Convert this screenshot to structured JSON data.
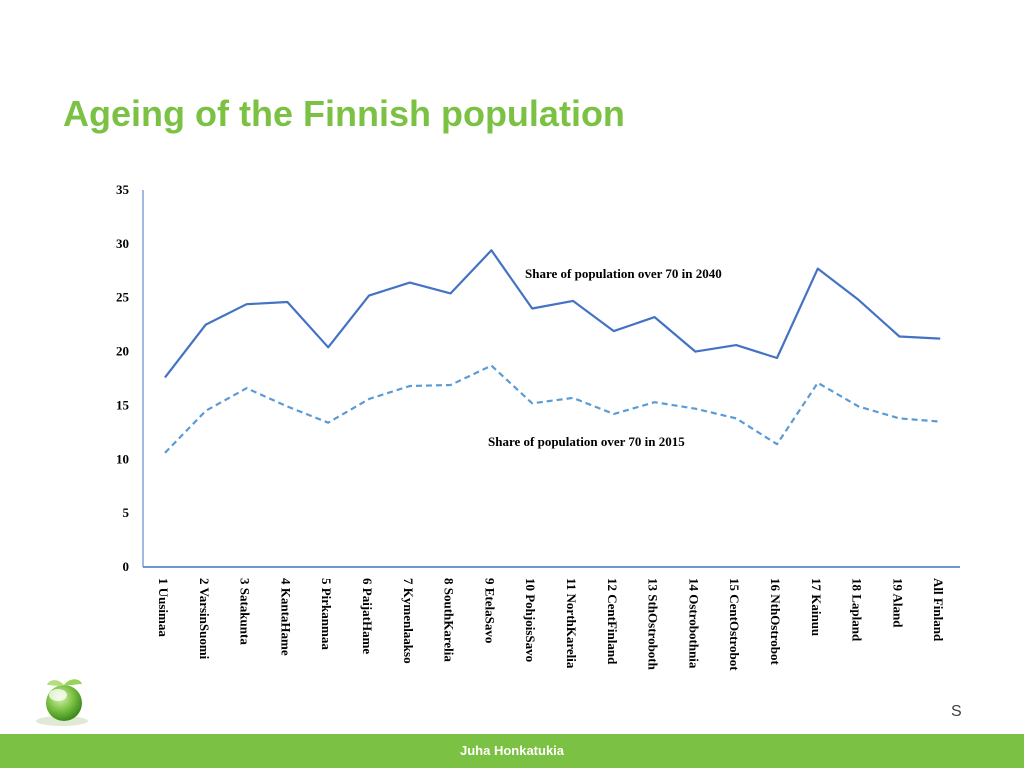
{
  "slide": {
    "title": "Ageing of the Finnish population",
    "footer_text": "Juha Honkatukia",
    "edge_glyph": "S"
  },
  "colors": {
    "title": "#7bc143",
    "footer_bar": "#7bc143",
    "series_2040": "#4472c4",
    "series_2015": "#5b9bd5",
    "axis": "#4472c4",
    "text": "#000000"
  },
  "chart_data": {
    "type": "line",
    "categories": [
      "1 Uusimaa",
      "2 VarsinSuomi",
      "3 Satakunta",
      "4 KantaHame",
      "5 Pirkanmaa",
      "6 PaijatHame",
      "7 Kymenlaakso",
      "8 SouthKarelia",
      "9 EtelaSavo",
      "10 PohjoisSavo",
      "11 NorthKarelia",
      "12 CentFinland",
      "13 SthOstroboth",
      "14 Ostrobothnia",
      "15 CentOstrobot",
      "16 NthOstrobot",
      "17 Kainuu",
      "18 Lapland",
      "19 Aland",
      "All Finland"
    ],
    "series": [
      {
        "name": "Share of population over 70 in 2040",
        "style": "solid",
        "values": [
          17.6,
          22.5,
          24.4,
          24.6,
          20.4,
          25.2,
          26.4,
          25.4,
          29.4,
          24.0,
          24.7,
          21.9,
          23.2,
          20.0,
          20.6,
          19.4,
          27.7,
          24.8,
          21.4,
          21.2
        ]
      },
      {
        "name": "Share of population over 70 in 2015",
        "style": "dashed",
        "values": [
          10.6,
          14.5,
          16.6,
          14.9,
          13.4,
          15.6,
          16.8,
          16.9,
          18.7,
          15.2,
          15.7,
          14.2,
          15.3,
          14.7,
          13.8,
          11.4,
          17.1,
          14.9,
          13.8,
          13.5
        ]
      }
    ],
    "ylim": [
      0,
      35
    ],
    "yticks": [
      "0",
      "5",
      "10",
      "15",
      "20",
      "25",
      "30",
      "35"
    ],
    "xlabel": "",
    "ylabel": "",
    "grid": false,
    "legend": "none"
  }
}
